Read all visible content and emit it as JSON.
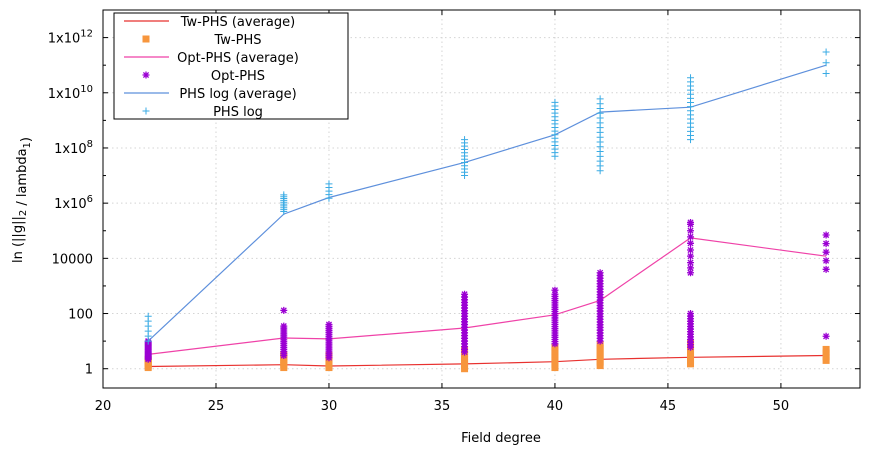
{
  "chart_data": {
    "type": "scatter",
    "xlabel": "Field degree",
    "ylabel": "ln (||g||_2 / lambda_1)",
    "x_ticks": [
      20,
      25,
      30,
      35,
      40,
      45,
      50
    ],
    "xlim": [
      20,
      53.5
    ],
    "y_scale": "log",
    "ylim": [
      0.2,
      10000000000000.0
    ],
    "y_ticks": [
      {
        "value": 1,
        "mant": "1"
      },
      {
        "value": 100,
        "mant": "100"
      },
      {
        "value": 10000,
        "mant": "10000"
      },
      {
        "value": 1000000.0,
        "mant": "1x10",
        "exp": "6"
      },
      {
        "value": 100000000.0,
        "mant": "1x10",
        "exp": "8"
      },
      {
        "value": 10000000000.0,
        "mant": "1x10",
        "exp": "10"
      },
      {
        "value": 1000000000000.0,
        "mant": "1x10",
        "exp": "12"
      }
    ],
    "grid": true,
    "legend_position": "top-left",
    "colors": {
      "tw_line": "#e8312f",
      "tw_points": "#f7963d",
      "opt_line": "#ef42a8",
      "opt_points": "#9b00d3",
      "phs_line": "#5e90dc",
      "phs_points": "#3aabe4"
    },
    "series": [
      {
        "name": "Tw-PHS (average)",
        "kind": "line",
        "color_key": "tw_line",
        "x": [
          22,
          28,
          30,
          36,
          40,
          42,
          46,
          52
        ],
        "y": [
          1.2,
          1.4,
          1.25,
          1.5,
          1.8,
          2.2,
          2.6,
          3.0
        ]
      },
      {
        "name": "Tw-PHS",
        "kind": "points",
        "marker": "square",
        "color_key": "tw_points",
        "groups": [
          {
            "x": 22,
            "min": 1.1,
            "max": 2.2,
            "n": 6
          },
          {
            "x": 28,
            "min": 1.1,
            "max": 3.2,
            "n": 6
          },
          {
            "x": 30,
            "min": 1.1,
            "max": 3.0,
            "n": 6
          },
          {
            "x": 36,
            "min": 1.0,
            "max": 4.5,
            "n": 7
          },
          {
            "x": 40,
            "min": 1.1,
            "max": 6.0,
            "n": 7
          },
          {
            "x": 42,
            "min": 1.3,
            "max": 7.5,
            "n": 7
          },
          {
            "x": 46,
            "min": 1.5,
            "max": 8.5,
            "n": 7
          },
          {
            "x": 52,
            "min": 2.0,
            "max": 5.0,
            "n": 4
          }
        ]
      },
      {
        "name": "Opt-PHS (average)",
        "kind": "line",
        "color_key": "opt_line",
        "x": [
          22,
          28,
          30,
          36,
          40,
          42,
          46,
          52
        ],
        "y": [
          3.3,
          13,
          12,
          30,
          90,
          300,
          55000,
          12000
        ]
      },
      {
        "name": "Opt-PHS",
        "kind": "points",
        "marker": "star",
        "color_key": "opt_points",
        "groups": [
          {
            "x": 22,
            "min": 2.2,
            "max": 10,
            "n": 18
          },
          {
            "x": 28,
            "min": 3.0,
            "max": 35,
            "n": 16,
            "extra": [
              130
            ]
          },
          {
            "x": 30,
            "min": 2.5,
            "max": 40,
            "n": 18
          },
          {
            "x": 36,
            "min": 4.0,
            "max": 500,
            "n": 22
          },
          {
            "x": 40,
            "min": 8.0,
            "max": 500,
            "n": 24,
            "extra": [
              700
            ]
          },
          {
            "x": 42,
            "min": 10,
            "max": 3000,
            "n": 26
          },
          {
            "x": 46,
            "min": 6.0,
            "max": 100,
            "n": 14,
            "extra": [
              3000,
              4500,
              7000,
              12000,
              20000,
              35000,
              60000,
              100000,
              170000,
              200000
            ]
          },
          {
            "x": 52,
            "min": 4000,
            "max": 70000,
            "n": 5,
            "extra": [
              15
            ]
          }
        ]
      },
      {
        "name": "PHS log (average)",
        "kind": "line",
        "color_key": "phs_line",
        "x": [
          22,
          28,
          30,
          36,
          40,
          42,
          46,
          52
        ],
        "y": [
          10,
          400000.0,
          1600000.0,
          30000000.0,
          300000000.0,
          2000000000.0,
          3000000000.0,
          100000000000.0
        ]
      },
      {
        "name": "PHS log",
        "kind": "points",
        "marker": "plus",
        "color_key": "phs_points",
        "groups": [
          {
            "x": 22,
            "min": 10,
            "max": 80,
            "n": 6
          },
          {
            "x": 28,
            "min": 500000.0,
            "max": 2000000.0,
            "n": 10
          },
          {
            "x": 30,
            "min": 1500000.0,
            "max": 5000000.0,
            "n": 5
          },
          {
            "x": 36,
            "min": 10000000.0,
            "max": 200000000.0,
            "n": 12
          },
          {
            "x": 40,
            "min": 50000000.0,
            "max": 4500000000.0,
            "n": 16
          },
          {
            "x": 42,
            "min": 15000000.0,
            "max": 6000000000.0,
            "n": 16
          },
          {
            "x": 46,
            "min": 200000000.0,
            "max": 35000000000.0,
            "n": 16
          },
          {
            "x": 52,
            "min": 50000000000.0,
            "max": 300000000000.0,
            "n": 3
          }
        ]
      }
    ]
  }
}
